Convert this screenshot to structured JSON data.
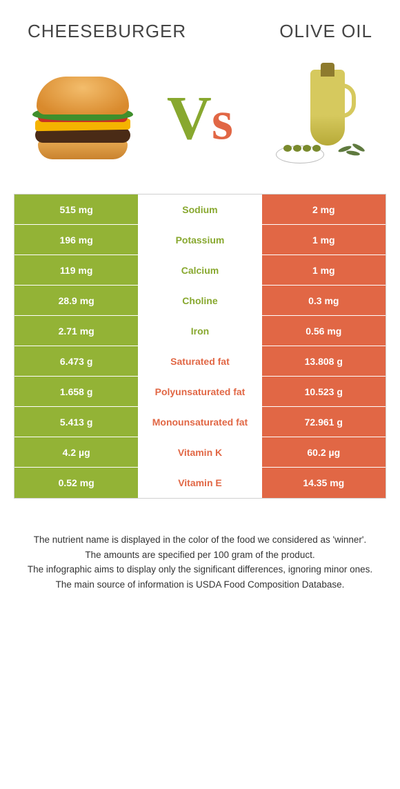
{
  "colors": {
    "left_food": "#93b336",
    "right_food": "#e16745",
    "left_food_text": "#88a82f",
    "right_food_text": "#e16745",
    "border": "#d0d0d0"
  },
  "header": {
    "left_title": "CHEESEBURGER",
    "right_title": "OLIVE OIL",
    "vs_v": "V",
    "vs_s": "S"
  },
  "rows": [
    {
      "nutrient": "Sodium",
      "left": "515 mg",
      "right": "2 mg",
      "winner": "left"
    },
    {
      "nutrient": "Potassium",
      "left": "196 mg",
      "right": "1 mg",
      "winner": "left"
    },
    {
      "nutrient": "Calcium",
      "left": "119 mg",
      "right": "1 mg",
      "winner": "left"
    },
    {
      "nutrient": "Choline",
      "left": "28.9 mg",
      "right": "0.3 mg",
      "winner": "left"
    },
    {
      "nutrient": "Iron",
      "left": "2.71 mg",
      "right": "0.56 mg",
      "winner": "left"
    },
    {
      "nutrient": "Saturated fat",
      "left": "6.473 g",
      "right": "13.808 g",
      "winner": "right"
    },
    {
      "nutrient": "Polyunsaturated fat",
      "left": "1.658 g",
      "right": "10.523 g",
      "winner": "right"
    },
    {
      "nutrient": "Monounsaturated fat",
      "left": "5.413 g",
      "right": "72.961 g",
      "winner": "right"
    },
    {
      "nutrient": "Vitamin K",
      "left": "4.2 µg",
      "right": "60.2 µg",
      "winner": "right"
    },
    {
      "nutrient": "Vitamin E",
      "left": "0.52 mg",
      "right": "14.35 mg",
      "winner": "right"
    }
  ],
  "footer": {
    "line1": "The nutrient name is displayed in the color of the food we considered as 'winner'.",
    "line2": "The amounts are specified per 100 gram of the product.",
    "line3": "The infographic aims to display only the significant differences, ignoring minor ones.",
    "line4": "The main source of information is USDA Food Composition Database."
  }
}
